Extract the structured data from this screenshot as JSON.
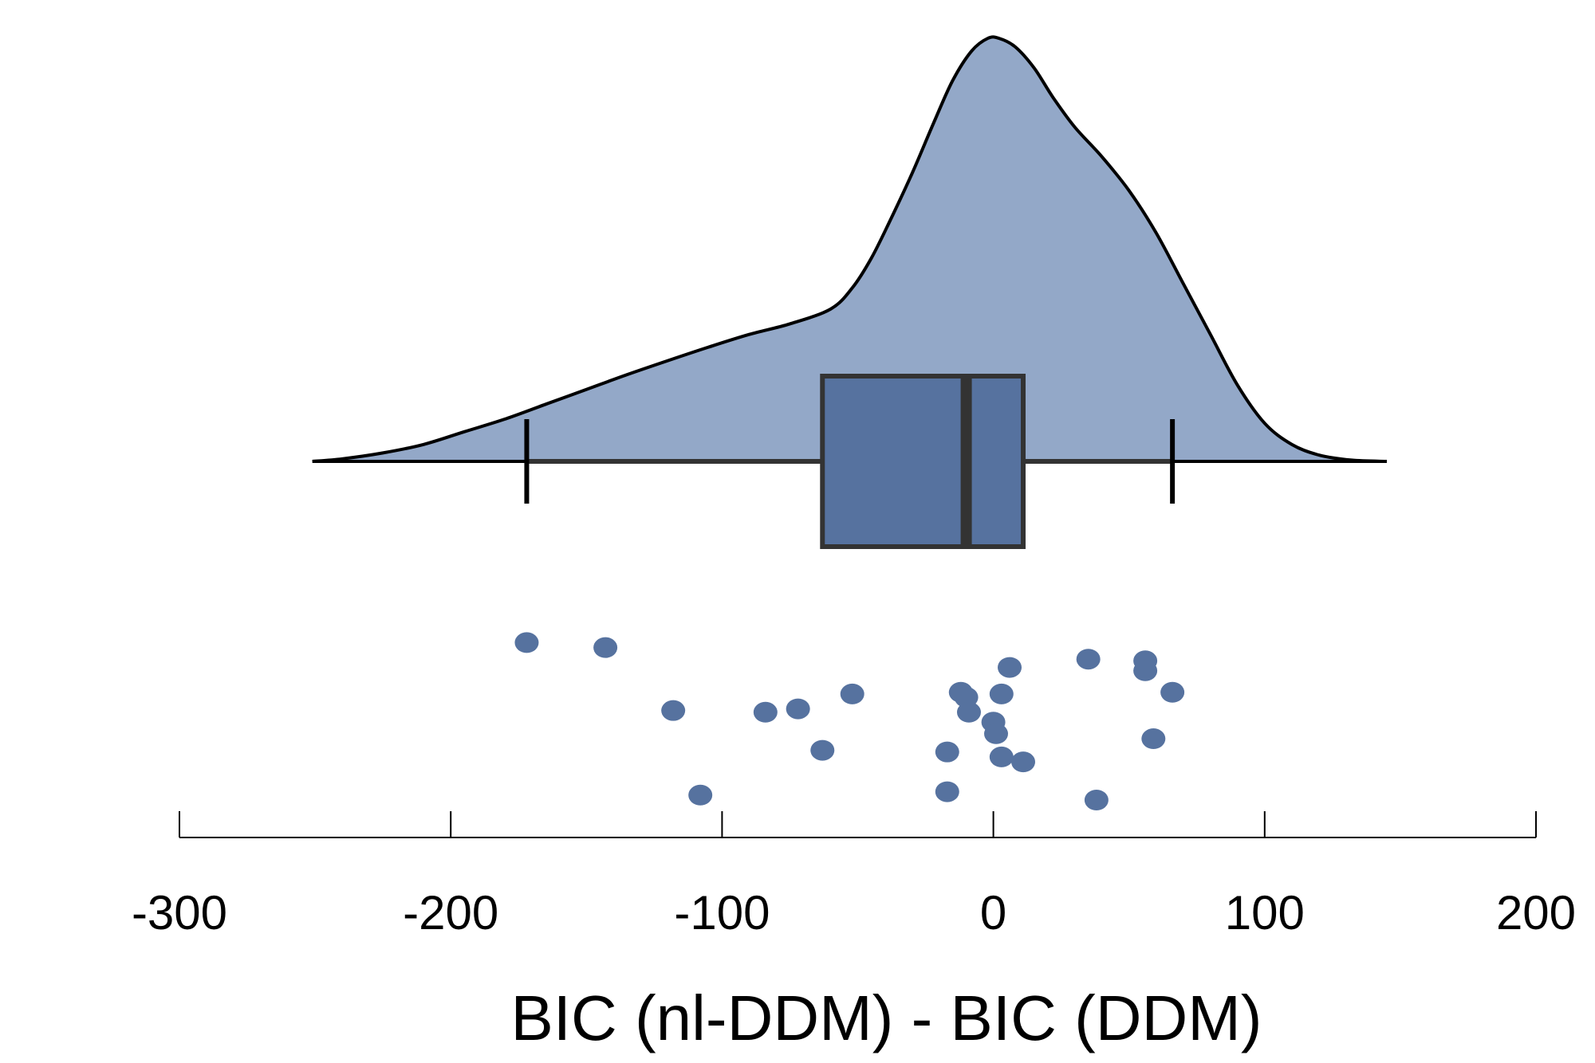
{
  "chart_data": {
    "type": "raincloud",
    "title": "",
    "xlabel": "BIC (nl-DDM) - BIC (DDM)",
    "ylabel": "",
    "xlim": [
      -300,
      200
    ],
    "xticks": [
      -300,
      -200,
      -100,
      0,
      100,
      200
    ],
    "xtick_labels": [
      "-300",
      "-200",
      "-100",
      "0",
      "100",
      "200"
    ],
    "grid": false,
    "legend": "none",
    "colors": {
      "density_fill": "#93a8c8",
      "density_stroke": "#000000",
      "box_fill": "#56729f",
      "box_stroke": "#333333",
      "whisker": "#333333",
      "point": "#56729f",
      "axis": "#000000"
    },
    "box": {
      "whisker_low": -172,
      "q1": -63,
      "median": -10,
      "q3": 11,
      "whisker_high": 66
    },
    "density": {
      "x": [
        -251,
        -240,
        -225,
        -210,
        -195,
        -180,
        -165,
        -150,
        -135,
        -120,
        -105,
        -90,
        -75,
        -60,
        -52,
        -45,
        -38,
        -30,
        -22,
        -15,
        -8,
        -2,
        2,
        8,
        15,
        22,
        30,
        40,
        50,
        60,
        70,
        80,
        90,
        100,
        110,
        120,
        132,
        145
      ],
      "y": [
        0.0,
        0.006,
        0.02,
        0.04,
        0.07,
        0.1,
        0.135,
        0.17,
        0.205,
        0.238,
        0.27,
        0.3,
        0.325,
        0.36,
        0.41,
        0.48,
        0.57,
        0.68,
        0.8,
        0.9,
        0.97,
        1.0,
        1.0,
        0.98,
        0.93,
        0.86,
        0.79,
        0.72,
        0.64,
        0.54,
        0.42,
        0.3,
        0.18,
        0.09,
        0.04,
        0.015,
        0.003,
        0.0
      ]
    },
    "points": [
      {
        "x": -172,
        "jitter": 0.95
      },
      {
        "x": -143,
        "jitter": 0.92
      },
      {
        "x": -118,
        "jitter": 0.54
      },
      {
        "x": -108,
        "jitter": 0.03
      },
      {
        "x": -84,
        "jitter": 0.53
      },
      {
        "x": -72,
        "jitter": 0.55
      },
      {
        "x": -63,
        "jitter": 0.3
      },
      {
        "x": -52,
        "jitter": 0.64
      },
      {
        "x": -17,
        "jitter": 0.29
      },
      {
        "x": -17,
        "jitter": 0.05
      },
      {
        "x": -12,
        "jitter": 0.65
      },
      {
        "x": -10,
        "jitter": 0.62
      },
      {
        "x": -9,
        "jitter": 0.53
      },
      {
        "x": 0,
        "jitter": 0.47
      },
      {
        "x": 1,
        "jitter": 0.4
      },
      {
        "x": 3,
        "jitter": 0.64
      },
      {
        "x": 3,
        "jitter": 0.26
      },
      {
        "x": 6,
        "jitter": 0.8
      },
      {
        "x": 11,
        "jitter": 0.23
      },
      {
        "x": 35,
        "jitter": 0.85
      },
      {
        "x": 38,
        "jitter": 0.0
      },
      {
        "x": 56,
        "jitter": 0.84
      },
      {
        "x": 56,
        "jitter": 0.78
      },
      {
        "x": 59,
        "jitter": 0.37
      },
      {
        "x": 66,
        "jitter": 0.65
      }
    ]
  }
}
